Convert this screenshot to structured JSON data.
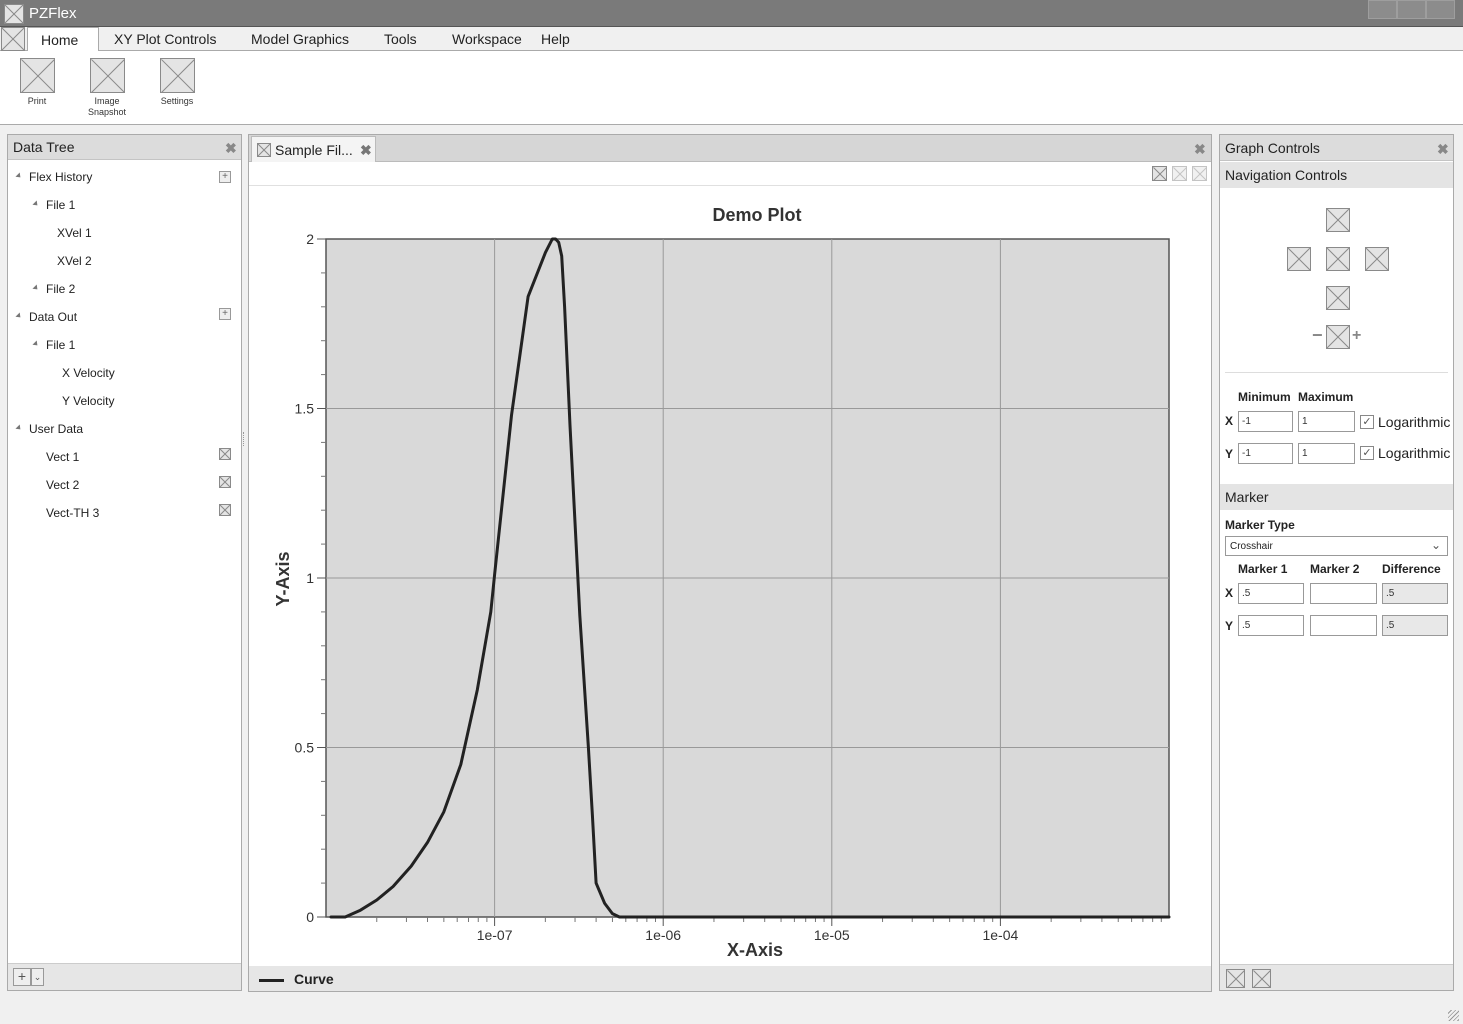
{
  "window": {
    "title": "PZFlex"
  },
  "menu": {
    "items": [
      {
        "label": "Home",
        "active": true
      },
      {
        "label": "XY Plot Controls"
      },
      {
        "label": "Model Graphics"
      },
      {
        "label": "Tools"
      },
      {
        "label": "Workspace"
      },
      {
        "label": "Help"
      }
    ]
  },
  "ribbon": {
    "buttons": [
      {
        "label": "Print",
        "icon": "print-icon"
      },
      {
        "label": "Image Snapshot",
        "icon": "image-snapshot-icon"
      },
      {
        "label": "Settings",
        "icon": "settings-icon"
      }
    ]
  },
  "data_tree": {
    "title": "Data Tree",
    "items": [
      {
        "label": "Flex History",
        "level": 0,
        "expanded": true,
        "action": "add"
      },
      {
        "label": "File 1",
        "level": 1,
        "expanded": true
      },
      {
        "label": "XVel 1",
        "level": 2
      },
      {
        "label": "XVel 2",
        "level": 2
      },
      {
        "label": "File 2",
        "level": 1,
        "expanded": true
      },
      {
        "label": "Data Out",
        "level": 0,
        "expanded": true,
        "action": "add"
      },
      {
        "label": "File 1",
        "level": 1,
        "expanded": true
      },
      {
        "label": "X Velocity",
        "level": 2
      },
      {
        "label": "Y Velocity",
        "level": 2
      },
      {
        "label": "User Data",
        "level": 0,
        "expanded": true
      },
      {
        "label": "Vect 1",
        "level": 1,
        "action": "remove"
      },
      {
        "label": "Vect 2",
        "level": 1,
        "action": "remove"
      },
      {
        "label": "Vect-TH 3",
        "level": 1,
        "action": "remove"
      }
    ],
    "footer_add": "+"
  },
  "document": {
    "tab_label": "Sample Fil..."
  },
  "chart_data": {
    "type": "line",
    "title": "Demo Plot",
    "xlabel": "X-Axis",
    "ylabel": "Y-Axis",
    "x_scale": "log",
    "xlim": [
      1e-08,
      0.001
    ],
    "ylim": [
      0,
      2
    ],
    "x_ticks": [
      "1e-07",
      "1e-06",
      "1e-05",
      "1e-04"
    ],
    "y_ticks": [
      "0",
      "0.5",
      "1",
      "1.5",
      "2"
    ],
    "grid": true,
    "legend": "bottom-left",
    "series": [
      {
        "name": "Curve",
        "color": "#222222",
        "x": [
          1.07e-08,
          1.3e-08,
          1.6e-08,
          2e-08,
          2.5e-08,
          3.2e-08,
          4e-08,
          5e-08,
          6.3e-08,
          7.9e-08,
          9.5e-08,
          1e-07,
          1.26e-07,
          1.58e-07,
          2e-07,
          2.2e-07,
          2.3e-07,
          2.4e-07,
          2.5e-07,
          2.6e-07,
          2.8e-07,
          3.2e-07,
          3.6e-07,
          3.8e-07,
          4e-07,
          4.5e-07,
          5e-07,
          5.5e-07,
          7e-07,
          1e-06,
          1e-05,
          0.0001,
          0.001
        ],
        "y": [
          0.0,
          0.0,
          0.02,
          0.05,
          0.09,
          0.15,
          0.22,
          0.31,
          0.45,
          0.67,
          0.9,
          1.01,
          1.48,
          1.83,
          1.96,
          2.0,
          2.0,
          1.99,
          1.95,
          1.8,
          1.45,
          0.89,
          0.5,
          0.3,
          0.1,
          0.04,
          0.01,
          0.0,
          0.0,
          0.0,
          0.0,
          0.0,
          0.0
        ]
      }
    ]
  },
  "graph_controls": {
    "title": "Graph Controls",
    "navigation": {
      "title": "Navigation Controls",
      "zoom_minus": "−",
      "zoom_plus": "+"
    },
    "axes": {
      "min_label": "Minimum",
      "max_label": "Maximum",
      "x_label": "X",
      "y_label": "Y",
      "x_min": "-1",
      "x_max": "1",
      "y_min": "-1",
      "y_max": "1",
      "log_label": "Logarithmic",
      "x_log": true,
      "y_log": true
    },
    "marker": {
      "title": "Marker",
      "type_label": "Marker Type",
      "type_value": "Crosshair",
      "col1": "Marker 1",
      "col2": "Marker 2",
      "col3": "Difference",
      "x_label": "X",
      "y_label": "Y",
      "x_m1": ".5",
      "x_m2": "",
      "x_diff": ".5",
      "y_m1": ".5",
      "y_m2": "",
      "y_diff": ".5"
    }
  }
}
